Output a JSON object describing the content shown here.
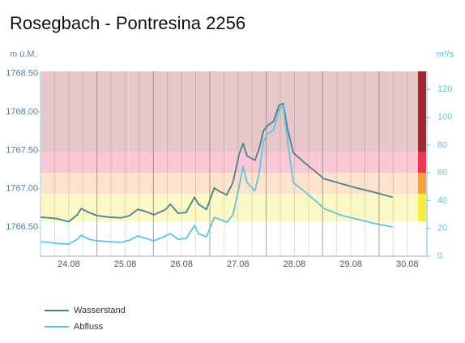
{
  "chart_data": {
    "type": "line",
    "title": "Rosegbach - Pontresina 2256",
    "y_label": "m ü.M.",
    "y2_label": "m³/s",
    "xlim": [
      0,
      6.69
    ],
    "xticks": [
      {
        "value": 0.5,
        "label": "24.08"
      },
      {
        "value": 1.5,
        "label": "25.08"
      },
      {
        "value": 2.5,
        "label": "26.08"
      },
      {
        "value": 3.5,
        "label": "27.08"
      },
      {
        "value": 4.5,
        "label": "28.08"
      },
      {
        "value": 5.5,
        "label": "29.08"
      },
      {
        "value": 6.5,
        "label": "30.08"
      }
    ],
    "xmajorgrid": [
      1,
      2,
      3,
      4,
      5,
      6
    ],
    "xminorgrid": [
      0.25,
      0.5,
      0.75,
      1.25,
      1.5,
      1.75,
      2.25,
      2.5,
      2.75,
      3.25,
      3.5,
      3.75,
      4.25,
      4.5,
      4.75,
      5.25,
      5.5,
      5.75,
      6.25,
      6.5
    ],
    "ylim": [
      1766.12,
      1768.53
    ],
    "yticks": [
      {
        "value": 1766.5,
        "label": "1766.50"
      },
      {
        "value": 1767,
        "label": "1767.00"
      },
      {
        "value": 1767.5,
        "label": "1767.50"
      },
      {
        "value": 1768,
        "label": "1768.00"
      },
      {
        "value": 1768.5,
        "label": "1768.50"
      }
    ],
    "y2lim": [
      0,
      133
    ],
    "y2ticks": [
      0,
      20,
      40,
      60,
      80,
      100,
      120
    ],
    "bands": [
      {
        "from": 25,
        "to": 45,
        "color": "#fbf8c6",
        "bar_color": "#f6ee3a"
      },
      {
        "from": 45,
        "to": 60,
        "color": "#fde3cc",
        "bar_color": "#f7a03c"
      },
      {
        "from": 60,
        "to": 75,
        "color": "#f9c8d4",
        "bar_color": "#f2354c"
      },
      {
        "from": 75,
        "to": 133,
        "color": "#e7c7ca",
        "bar_color": "#a0282e"
      }
    ],
    "series": [
      {
        "name": "Wasserstand",
        "color": "#4a8090",
        "axis": "y",
        "x": [
          0,
          0.29,
          0.5,
          0.65,
          0.72,
          0.86,
          1.0,
          1.22,
          1.43,
          1.58,
          1.72,
          1.84,
          2.01,
          2.22,
          2.3,
          2.44,
          2.58,
          2.73,
          2.8,
          2.94,
          3.08,
          3.16,
          3.3,
          3.41,
          3.52,
          3.59,
          3.66,
          3.8,
          3.87,
          3.95,
          4.02,
          4.13,
          4.23,
          4.3,
          4.38,
          4.48,
          4.66,
          4.88,
          5.02,
          5.31,
          5.6,
          5.88,
          6.24
        ],
        "values": [
          1766.63,
          1766.61,
          1766.57,
          1766.66,
          1766.74,
          1766.69,
          1766.65,
          1766.63,
          1766.62,
          1766.65,
          1766.73,
          1766.71,
          1766.66,
          1766.73,
          1766.8,
          1766.68,
          1766.69,
          1766.89,
          1766.8,
          1766.73,
          1767.01,
          1766.97,
          1766.92,
          1767.08,
          1767.45,
          1767.59,
          1767.43,
          1767.37,
          1767.51,
          1767.75,
          1767.82,
          1767.88,
          1768.09,
          1768.11,
          1767.77,
          1767.47,
          1767.35,
          1767.22,
          1767.13,
          1767.07,
          1767.01,
          1766.96,
          1766.89
        ]
      },
      {
        "name": "Abfluss",
        "color": "#5cc4e4",
        "axis": "y2",
        "x": [
          0,
          0.29,
          0.5,
          0.65,
          0.72,
          0.86,
          1.0,
          1.43,
          1.58,
          1.72,
          1.87,
          2.01,
          2.22,
          2.3,
          2.44,
          2.58,
          2.73,
          2.8,
          2.94,
          3.08,
          3.16,
          3.3,
          3.41,
          3.52,
          3.59,
          3.66,
          3.8,
          3.87,
          3.95,
          4.02,
          4.13,
          4.23,
          4.3,
          4.38,
          4.48,
          4.66,
          4.88,
          5.02,
          5.31,
          5.6,
          5.88,
          6.24
        ],
        "values": [
          10.5,
          9.3,
          8.7,
          12.2,
          15.1,
          12.2,
          11.1,
          9.9,
          11.6,
          14.6,
          12.8,
          11.1,
          14.6,
          16.3,
          12.2,
          12.8,
          22.1,
          16.3,
          14.0,
          28.0,
          26.8,
          24.5,
          29.7,
          50.1,
          64.6,
          53.0,
          47.2,
          58.8,
          82.1,
          87.9,
          90.9,
          105.4,
          108.3,
          82.1,
          53.0,
          47.2,
          39.6,
          34.4,
          29.7,
          26.8,
          23.9,
          21.0
        ]
      }
    ]
  }
}
